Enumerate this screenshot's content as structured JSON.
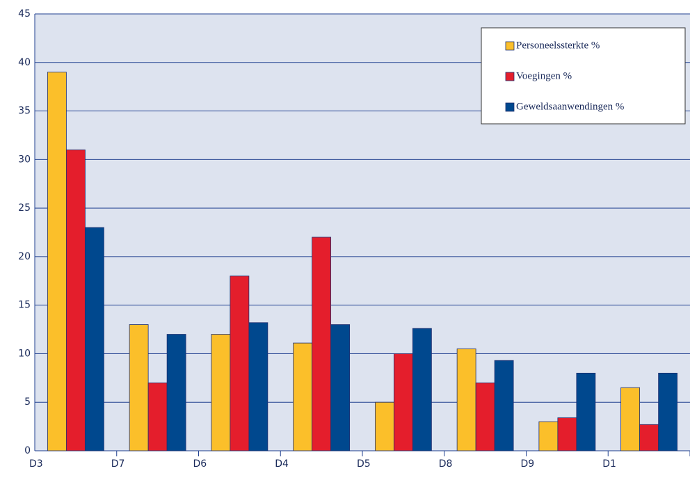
{
  "chart_data": {
    "type": "bar",
    "categories": [
      "D3",
      "D7",
      "D6",
      "D4",
      "D5",
      "D8",
      "D9",
      "D1"
    ],
    "series": [
      {
        "name": "Personeelssterkte %",
        "color": "#fbbf2a",
        "values": [
          39,
          13,
          12,
          11.1,
          5,
          10.5,
          3,
          6.5
        ]
      },
      {
        "name": "Voegingen %",
        "color": "#e41e2c",
        "values": [
          31,
          7,
          18,
          22,
          10,
          7,
          3.4,
          2.7
        ]
      },
      {
        "name": "Geweldsaanwendingen %",
        "color": "#00488e",
        "values": [
          23,
          12,
          13.2,
          13,
          12.6,
          9.3,
          8,
          8
        ]
      }
    ],
    "ylim": [
      0,
      45
    ],
    "yticks": [
      0,
      5,
      10,
      15,
      20,
      25,
      30,
      35,
      40,
      45
    ],
    "grid": true,
    "legend": "upper right"
  }
}
